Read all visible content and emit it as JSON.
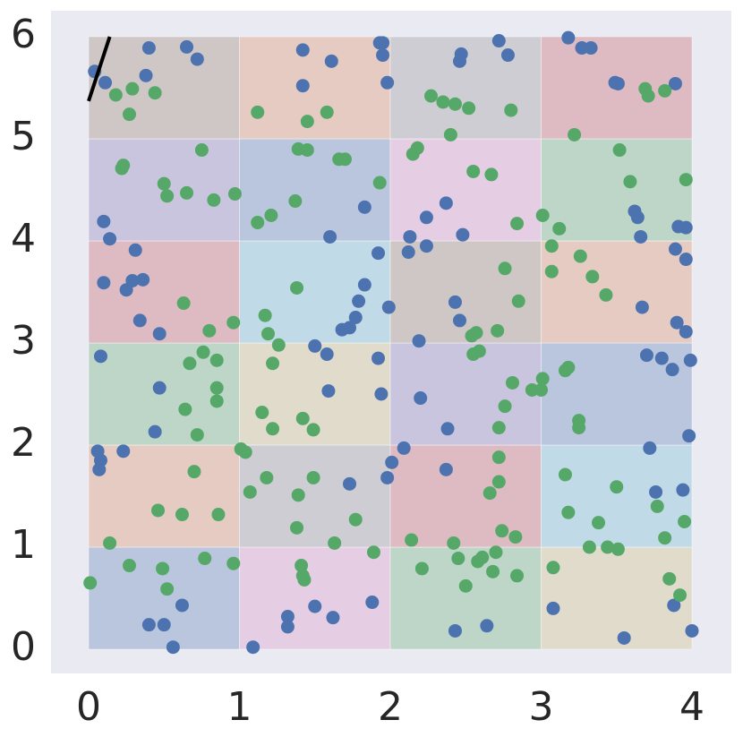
{
  "chart_data": {
    "type": "scatter",
    "xlim": [
      0,
      4
    ],
    "ylim": [
      0,
      6
    ],
    "xticks": [
      0,
      1,
      2,
      3,
      4
    ],
    "yticks": [
      0,
      1,
      2,
      3,
      4,
      5,
      6
    ],
    "grid": false,
    "background": "#eaeaf2",
    "cell_opacity": 0.3,
    "cell_colors": [
      [
        "#4c72b0",
        "#da8bc3",
        "#55a868",
        "#ccb974"
      ],
      [
        "#dd8452",
        "#8c8c8c",
        "#c44e52",
        "#64b5cd"
      ],
      [
        "#55a868",
        "#ccb974",
        "#8172b3",
        "#4c72b0"
      ],
      [
        "#c44e52",
        "#64b5cd",
        "#937860",
        "#dd8452"
      ],
      [
        "#8172b3",
        "#4c72b0",
        "#da8bc3",
        "#55a868"
      ],
      [
        "#937860",
        "#dd8452",
        "#8c8c8c",
        "#c44e52"
      ]
    ],
    "line": {
      "color": "#000000",
      "x": [
        0,
        0.14
      ],
      "values": [
        5.37,
        6.0
      ]
    },
    "series": [
      {
        "color": "#4c72b0",
        "x": [
          0.04,
          0.11,
          0.4,
          0.65,
          0.72,
          0.38,
          1.42,
          1.42,
          1.61,
          1.93,
          1.95,
          1.95,
          1.98,
          2.47,
          2.46,
          2.72,
          2.78,
          3.18,
          3.27,
          3.33,
          3.49,
          3.51,
          3.89,
          0.1,
          0.14,
          0.31,
          0.1,
          0.25,
          0.29,
          0.36,
          0.34,
          0.47,
          1.6,
          1.83,
          1.92,
          1.99,
          1.83,
          1.79,
          1.77,
          1.73,
          1.68,
          2.13,
          2.12,
          2.24,
          2.24,
          2.37,
          2.48,
          2.43,
          2.46,
          3.62,
          3.64,
          3.66,
          3.91,
          3.96,
          3.89,
          3.96,
          3.67,
          3.9,
          3.96,
          0.08,
          0.47,
          0.44,
          1.5,
          1.58,
          1.59,
          1.92,
          1.94,
          2.19,
          2.2,
          2.38,
          3.7,
          3.8,
          3.87,
          3.99,
          3.98,
          3.72,
          0.06,
          0.08,
          0.07,
          0.23,
          1.73,
          1.98,
          2.01,
          2.09,
          2.37,
          3.76,
          3.94,
          0.62,
          0.4,
          0.5,
          0.56,
          1.32,
          1.32,
          1.5,
          1.62,
          1.88,
          1.09,
          2.43,
          2.64,
          3.08,
          3.55,
          3.88,
          4.0
        ],
        "values": [
          5.66,
          5.55,
          5.89,
          5.9,
          5.78,
          5.62,
          5.87,
          5.52,
          5.76,
          5.94,
          5.94,
          5.82,
          5.55,
          5.83,
          5.76,
          5.96,
          5.82,
          5.99,
          5.89,
          5.89,
          5.55,
          5.54,
          5.54,
          4.19,
          4.02,
          3.91,
          3.59,
          3.52,
          3.61,
          3.62,
          3.22,
          3.09,
          4.04,
          4.33,
          3.88,
          3.35,
          3.57,
          3.41,
          3.25,
          3.15,
          3.13,
          4.04,
          3.89,
          3.95,
          4.23,
          4.37,
          4.06,
          3.4,
          3.22,
          4.29,
          4.23,
          4.04,
          4.14,
          4.13,
          3.92,
          3.82,
          3.35,
          3.2,
          3.11,
          2.87,
          2.56,
          2.13,
          2.97,
          2.89,
          2.53,
          2.85,
          2.5,
          3.02,
          2.46,
          2.16,
          2.88,
          2.85,
          2.74,
          2.83,
          2.09,
          1.97,
          1.94,
          1.85,
          1.76,
          1.94,
          1.62,
          1.68,
          1.83,
          1.97,
          1.76,
          1.54,
          1.56,
          0.43,
          0.24,
          0.24,
          0.02,
          0.32,
          0.22,
          0.42,
          0.31,
          0.46,
          0.02,
          0.18,
          0.23,
          0.4,
          0.11,
          0.43,
          0.18
        ]
      },
      {
        "color": "#55a868",
        "x": [
          0.18,
          0.29,
          0.44,
          0.27,
          1.12,
          1.45,
          1.58,
          2.27,
          2.35,
          2.43,
          2.52,
          2.4,
          2.8,
          3.22,
          3.69,
          3.71,
          3.82,
          0.22,
          0.23,
          0.75,
          0.5,
          0.52,
          0.65,
          0.83,
          0.97,
          1.12,
          1.21,
          1.37,
          1.39,
          1.45,
          1.66,
          1.7,
          1.93,
          2.15,
          2.18,
          2.55,
          2.67,
          2.84,
          3.01,
          3.12,
          3.07,
          3.07,
          3.26,
          3.34,
          3.43,
          3.52,
          3.59,
          3.96,
          0.63,
          0.8,
          0.96,
          1.17,
          1.19,
          1.26,
          1.38,
          2.76,
          2.85,
          2.54,
          2.57,
          2.71,
          2.59,
          2.55,
          0.76,
          0.85,
          0.67,
          0.85,
          0.85,
          0.64,
          0.72,
          1.15,
          1.22,
          1.42,
          1.49,
          1.22,
          2.81,
          2.76,
          2.72,
          2.94,
          3.0,
          3.01,
          3.16,
          3.18,
          3.25,
          3.25,
          1.01,
          1.04,
          0.7,
          1.07,
          1.18,
          1.39,
          1.49,
          1.38,
          1.63,
          1.77,
          1.89,
          2.72,
          2.72,
          2.66,
          2.74,
          2.83,
          3.16,
          3.18,
          3.38,
          3.5,
          3.32,
          3.44,
          3.51,
          3.77,
          3.82,
          3.95,
          0.46,
          0.62,
          0.86,
          0.01,
          0.14,
          0.27,
          0.49,
          0.52,
          0.77,
          0.96,
          1.41,
          1.42,
          1.43,
          2.14,
          2.21,
          2.42,
          2.45,
          2.5,
          2.58,
          2.61,
          2.68,
          2.7,
          2.84,
          3.08,
          3.85,
          3.92
        ],
        "values": [
          5.43,
          5.49,
          5.45,
          5.24,
          5.26,
          5.17,
          5.26,
          5.42,
          5.36,
          5.34,
          5.3,
          5.04,
          5.28,
          5.04,
          5.49,
          5.42,
          5.47,
          4.71,
          4.74,
          4.89,
          4.56,
          4.44,
          4.47,
          4.4,
          4.46,
          4.18,
          4.25,
          4.39,
          4.9,
          4.89,
          4.8,
          4.8,
          4.57,
          4.85,
          4.91,
          4.68,
          4.65,
          4.17,
          4.25,
          4.12,
          3.95,
          3.7,
          3.85,
          3.65,
          3.47,
          4.89,
          4.58,
          4.6,
          3.39,
          3.12,
          3.2,
          3.27,
          3.09,
          2.98,
          3.54,
          3.73,
          3.41,
          3.07,
          3.1,
          3.12,
          2.92,
          2.89,
          2.91,
          2.83,
          2.8,
          2.56,
          2.43,
          2.35,
          2.1,
          2.32,
          2.16,
          2.26,
          2.15,
          2.8,
          2.61,
          2.38,
          2.17,
          2.54,
          2.54,
          2.65,
          2.73,
          2.76,
          2.24,
          2.17,
          1.96,
          1.93,
          1.74,
          1.54,
          1.68,
          1.51,
          1.68,
          1.19,
          1.04,
          1.27,
          0.95,
          1.88,
          1.64,
          1.53,
          1.16,
          1.1,
          1.71,
          1.34,
          1.24,
          1.59,
          1.0,
          1.0,
          0.98,
          1.4,
          1.09,
          1.25,
          1.36,
          1.32,
          1.32,
          0.65,
          1.04,
          0.82,
          0.79,
          0.59,
          0.89,
          0.84,
          0.82,
          0.72,
          0.68,
          1.07,
          0.79,
          1.04,
          0.89,
          0.62,
          0.86,
          0.9,
          0.76,
          0.95,
          0.72,
          0.8,
          0.69,
          0.53
        ]
      }
    ]
  }
}
